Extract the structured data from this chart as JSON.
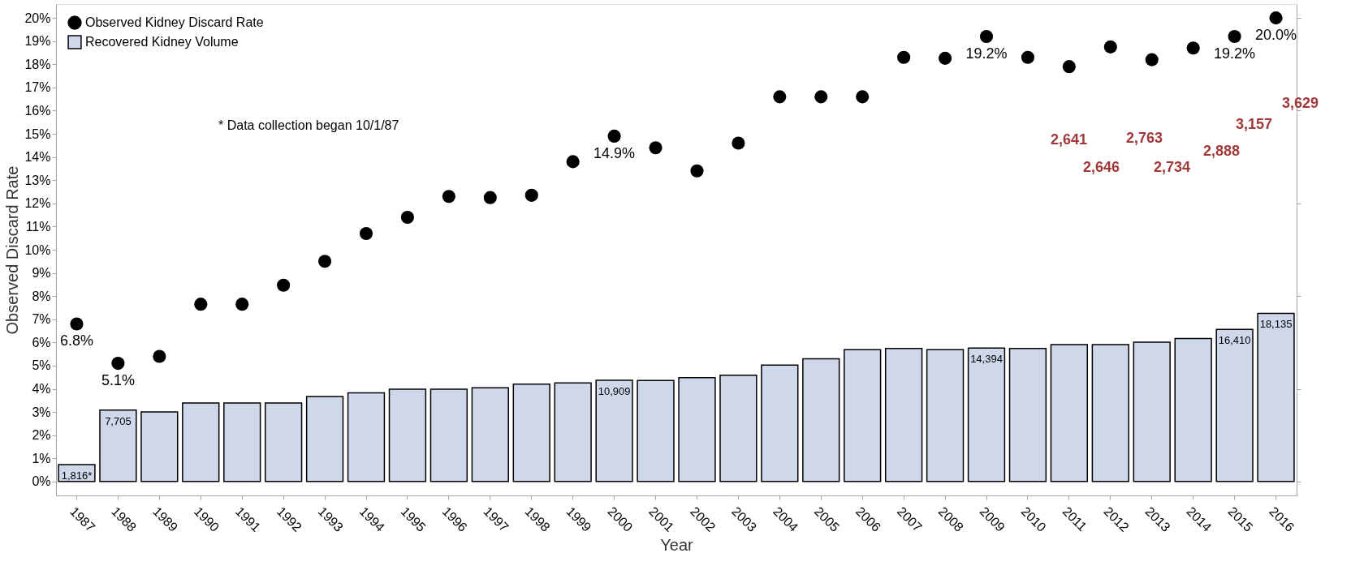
{
  "chart_data": {
    "type": "bar",
    "xlabel": "Year",
    "ylabel": "Observed Discard Rate",
    "categories": [
      "1987",
      "1988",
      "1989",
      "1990",
      "1991",
      "1992",
      "1993",
      "1994",
      "1995",
      "1996",
      "1997",
      "1998",
      "1999",
      "2000",
      "2001",
      "2002",
      "2003",
      "2004",
      "2005",
      "2006",
      "2007",
      "2008",
      "2009",
      "2010",
      "2011",
      "2012",
      "2013",
      "2014",
      "2015",
      "2016"
    ],
    "series": [
      {
        "name": "Observed Kidney Discard Rate",
        "type": "scatter",
        "axis": "y",
        "color": "#000000",
        "values": [
          6.8,
          5.1,
          5.4,
          7.65,
          7.65,
          8.47,
          9.5,
          10.7,
          11.4,
          12.3,
          12.25,
          12.35,
          13.8,
          14.9,
          14.4,
          13.4,
          14.6,
          16.6,
          16.6,
          16.6,
          18.3,
          18.26,
          19.2,
          18.3,
          17.9,
          18.75,
          18.2,
          18.7,
          19.2,
          20.0
        ],
        "value_labels": [
          "6.8%",
          "5.1%",
          null,
          null,
          null,
          null,
          null,
          null,
          null,
          null,
          null,
          null,
          null,
          "14.9%",
          null,
          null,
          null,
          null,
          null,
          null,
          null,
          null,
          "19.2%",
          null,
          null,
          null,
          null,
          null,
          "19.2%",
          "20.0%"
        ]
      },
      {
        "name": "Recovered Kidney Volume",
        "axis": "y2",
        "color": "#cfd8eb",
        "values": [
          1816,
          7705,
          7500,
          8480,
          8480,
          8480,
          9160,
          9570,
          9960,
          9960,
          10100,
          10500,
          10630,
          10909,
          10900,
          11200,
          11470,
          12560,
          13230,
          14230,
          14350,
          14230,
          14394,
          14350,
          14760,
          14760,
          15020,
          15420,
          16410,
          18135
        ],
        "value_labels": [
          "1,816*",
          "7,705",
          null,
          null,
          null,
          null,
          null,
          null,
          null,
          null,
          null,
          null,
          null,
          "10,909",
          null,
          null,
          null,
          null,
          null,
          null,
          null,
          null,
          "14,394",
          null,
          null,
          null,
          null,
          null,
          "16,410",
          "18,135"
        ]
      }
    ],
    "ylim": [
      -0.6,
      20.6
    ],
    "yticks": [
      {
        "value": 0,
        "label": "0%"
      },
      {
        "value": 1,
        "label": "1%"
      },
      {
        "value": 2,
        "label": "2%"
      },
      {
        "value": 3,
        "label": "3%"
      },
      {
        "value": 4,
        "label": "4%"
      },
      {
        "value": 5,
        "label": "5%"
      },
      {
        "value": 6,
        "label": "6%"
      },
      {
        "value": 7,
        "label": "7%"
      },
      {
        "value": 8,
        "label": "8%"
      },
      {
        "value": 9,
        "label": "9%"
      },
      {
        "value": 10,
        "label": "10%"
      },
      {
        "value": 11,
        "label": "11%"
      },
      {
        "value": 12,
        "label": "12%"
      },
      {
        "value": 13,
        "label": "13%"
      },
      {
        "value": 14,
        "label": "14%"
      },
      {
        "value": 15,
        "label": "15%"
      },
      {
        "value": 16,
        "label": "16%"
      },
      {
        "value": 17,
        "label": "17%"
      },
      {
        "value": 18,
        "label": "18%"
      },
      {
        "value": 19,
        "label": "19%"
      },
      {
        "value": 20,
        "label": "20%"
      }
    ],
    "y2lim": [
      -1500,
      51500
    ],
    "y2ticks": [
      {
        "value": 0,
        "label": null
      },
      {
        "value": 10000,
        "label": null
      },
      {
        "value": 20000,
        "label": null
      },
      {
        "value": 30000,
        "label": null
      },
      {
        "value": 40000,
        "label": null
      },
      {
        "value": 50000,
        "label": null
      }
    ],
    "annotations": [
      "*  Data collection began 10/1/87",
      "2,641",
      "2,646",
      "2,763",
      "2,734",
      "2,888",
      "3,157",
      "3,629"
    ],
    "legend": "top left",
    "grid": false,
    "marker": "circle"
  }
}
